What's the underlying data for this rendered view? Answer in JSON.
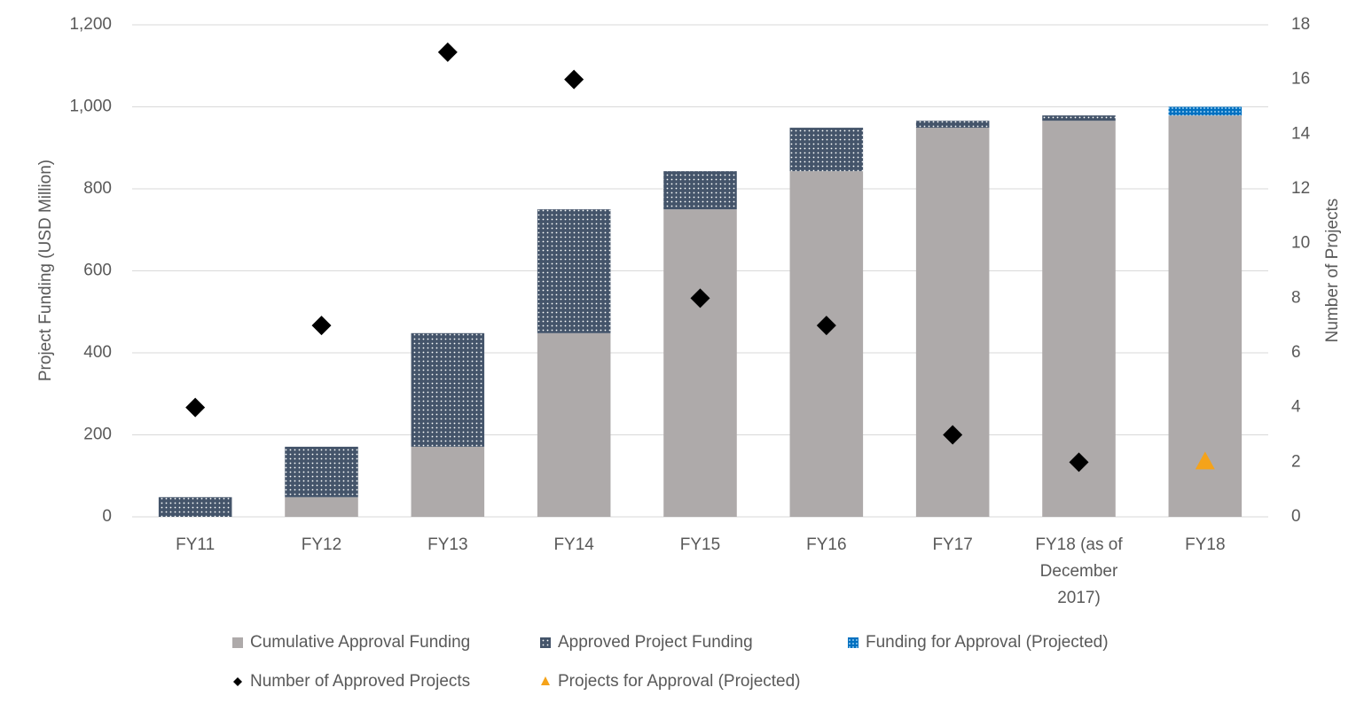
{
  "chart_data": {
    "type": "bar",
    "categories": [
      "FY11",
      "FY12",
      "FY13",
      "FY14",
      "FY15",
      "FY16",
      "FY17",
      "FY18 (as of December 2017)",
      "FY18"
    ],
    "ylabel": "Project Funding (USD Million)",
    "y2label": "Number of Projects",
    "ylim": [
      0,
      1200
    ],
    "yticks": [
      0,
      200,
      400,
      600,
      800,
      {
        "value": 1000,
        "label": "1,000"
      },
      {
        "value": 1200,
        "label": "1,200"
      }
    ],
    "y2lim": [
      0,
      18
    ],
    "y2ticks": [
      0,
      2,
      4,
      6,
      8,
      10,
      12,
      14,
      16,
      18
    ],
    "grid": true,
    "legend": "bottom",
    "series": [
      {
        "name": "Cumulative Approval Funding",
        "type": "bar",
        "color": "#aeaaaa",
        "pattern": "solid",
        "values": [
          0,
          48,
          171,
          448,
          750,
          843,
          949,
          966,
          979
        ]
      },
      {
        "name": "Approved Project Funding",
        "type": "bar",
        "color": "#44546a",
        "pattern": "dots",
        "values": [
          48,
          123,
          277,
          302,
          93,
          106,
          17,
          13,
          0
        ]
      },
      {
        "name": "Funding for Approval (Projected)",
        "type": "bar",
        "color": "#0070c0",
        "pattern": "dots",
        "values": [
          0,
          0,
          0,
          0,
          0,
          0,
          0,
          0,
          21
        ]
      },
      {
        "name": "Number of Approved Projects",
        "type": "scatter",
        "axis": "y2",
        "marker": "diamond",
        "color": "#000000",
        "values": [
          4,
          7,
          17,
          16,
          8,
          7,
          3,
          2,
          null
        ]
      },
      {
        "name": "Projects for Approval (Projected)",
        "type": "scatter",
        "axis": "y2",
        "marker": "triangle",
        "color": "#f5a31a",
        "values": [
          null,
          null,
          null,
          null,
          null,
          null,
          null,
          null,
          2
        ]
      }
    ]
  }
}
